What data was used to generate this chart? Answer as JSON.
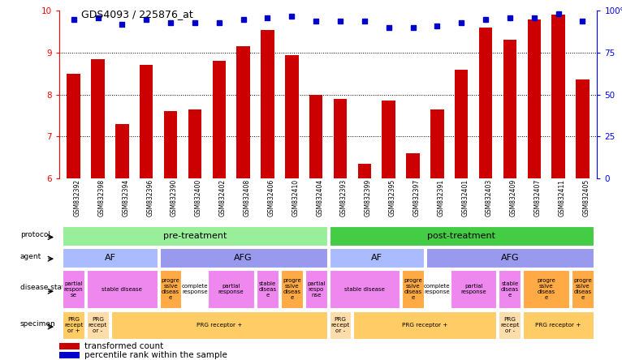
{
  "title": "GDS4093 / 225876_at",
  "samples": [
    "GSM832392",
    "GSM832398",
    "GSM832394",
    "GSM832396",
    "GSM832390",
    "GSM832400",
    "GSM832402",
    "GSM832408",
    "GSM832406",
    "GSM832410",
    "GSM832404",
    "GSM832393",
    "GSM832399",
    "GSM832395",
    "GSM832397",
    "GSM832391",
    "GSM832401",
    "GSM832403",
    "GSM832409",
    "GSM832407",
    "GSM832411",
    "GSM832405"
  ],
  "bar_values_full": [
    8.5,
    8.85,
    7.3,
    8.7,
    7.6,
    7.65,
    8.8,
    9.15,
    9.55,
    8.95,
    8.0,
    7.9,
    6.35,
    7.85,
    6.6,
    7.65,
    8.6,
    9.6,
    9.3,
    9.8,
    9.9,
    8.35
  ],
  "pct_values": [
    95,
    96,
    92,
    95,
    93,
    93,
    93,
    95,
    96,
    97,
    94,
    94,
    94,
    90,
    90,
    91,
    93,
    95,
    96,
    96,
    98,
    94
  ],
  "bar_color": "#cc0000",
  "percentile_color": "#0000cc",
  "bg_color": "#ffffff",
  "protocol_pre_color": "#99ee99",
  "protocol_post_color": "#44cc44",
  "agent_af_color": "#aabbff",
  "agent_afg_color": "#9999ee",
  "disease_pink": "#ee88ee",
  "disease_orange": "#ffaa44",
  "disease_white": "#ffffff",
  "specimen_orange": "#ffcc66",
  "specimen_neg_color": "#ffddaa",
  "agent_segs": [
    [
      0,
      3,
      "AF",
      "#aabbff"
    ],
    [
      4,
      10,
      "AFG",
      "#9999ee"
    ],
    [
      11,
      14,
      "AF",
      "#aabbff"
    ],
    [
      15,
      21,
      "AFG",
      "#9999ee"
    ]
  ],
  "disease_segs": [
    [
      0,
      0,
      "partial\nrespon\nse",
      "#ee88ee"
    ],
    [
      1,
      3,
      "stable disease",
      "#ee88ee"
    ],
    [
      4,
      4,
      "progre\nssive\ndiseas\ne",
      "#ffaa44"
    ],
    [
      5,
      5,
      "complete\nresponse",
      "#ffffff"
    ],
    [
      6,
      7,
      "partial\nresponse",
      "#ee88ee"
    ],
    [
      8,
      8,
      "stable\ndiseas\ne",
      "#ee88ee"
    ],
    [
      9,
      9,
      "progre\nssive\ndiseas\ne",
      "#ffaa44"
    ],
    [
      10,
      10,
      "partial\nrespo\nnse",
      "#ee88ee"
    ],
    [
      11,
      13,
      "stable disease",
      "#ee88ee"
    ],
    [
      14,
      14,
      "progre\nssive\ndiseas\ne",
      "#ffaa44"
    ],
    [
      15,
      15,
      "complete\nresponse",
      "#ffffff"
    ],
    [
      16,
      17,
      "partial\nresponse",
      "#ee88ee"
    ],
    [
      18,
      18,
      "stable\ndiseas\ne",
      "#ee88ee"
    ],
    [
      19,
      20,
      "progre\nssive\ndiseas\ne",
      "#ffaa44"
    ],
    [
      21,
      21,
      "progre\nssive\ndiseas\ne",
      "#ffaa44"
    ]
  ],
  "spec_segs": [
    [
      0,
      0,
      "PRG\nrecept\nor +",
      "#ffcc66"
    ],
    [
      1,
      1,
      "PRG\nrecept\nor -",
      "#ffddaa"
    ],
    [
      2,
      10,
      "PRG receptor +",
      "#ffcc66"
    ],
    [
      11,
      11,
      "PRG\nrecept\nor -",
      "#ffddaa"
    ],
    [
      12,
      17,
      "PRG receptor +",
      "#ffcc66"
    ],
    [
      18,
      18,
      "PRG\nrecept\nor -",
      "#ffddaa"
    ],
    [
      19,
      21,
      "PRG receptor +",
      "#ffcc66"
    ]
  ]
}
